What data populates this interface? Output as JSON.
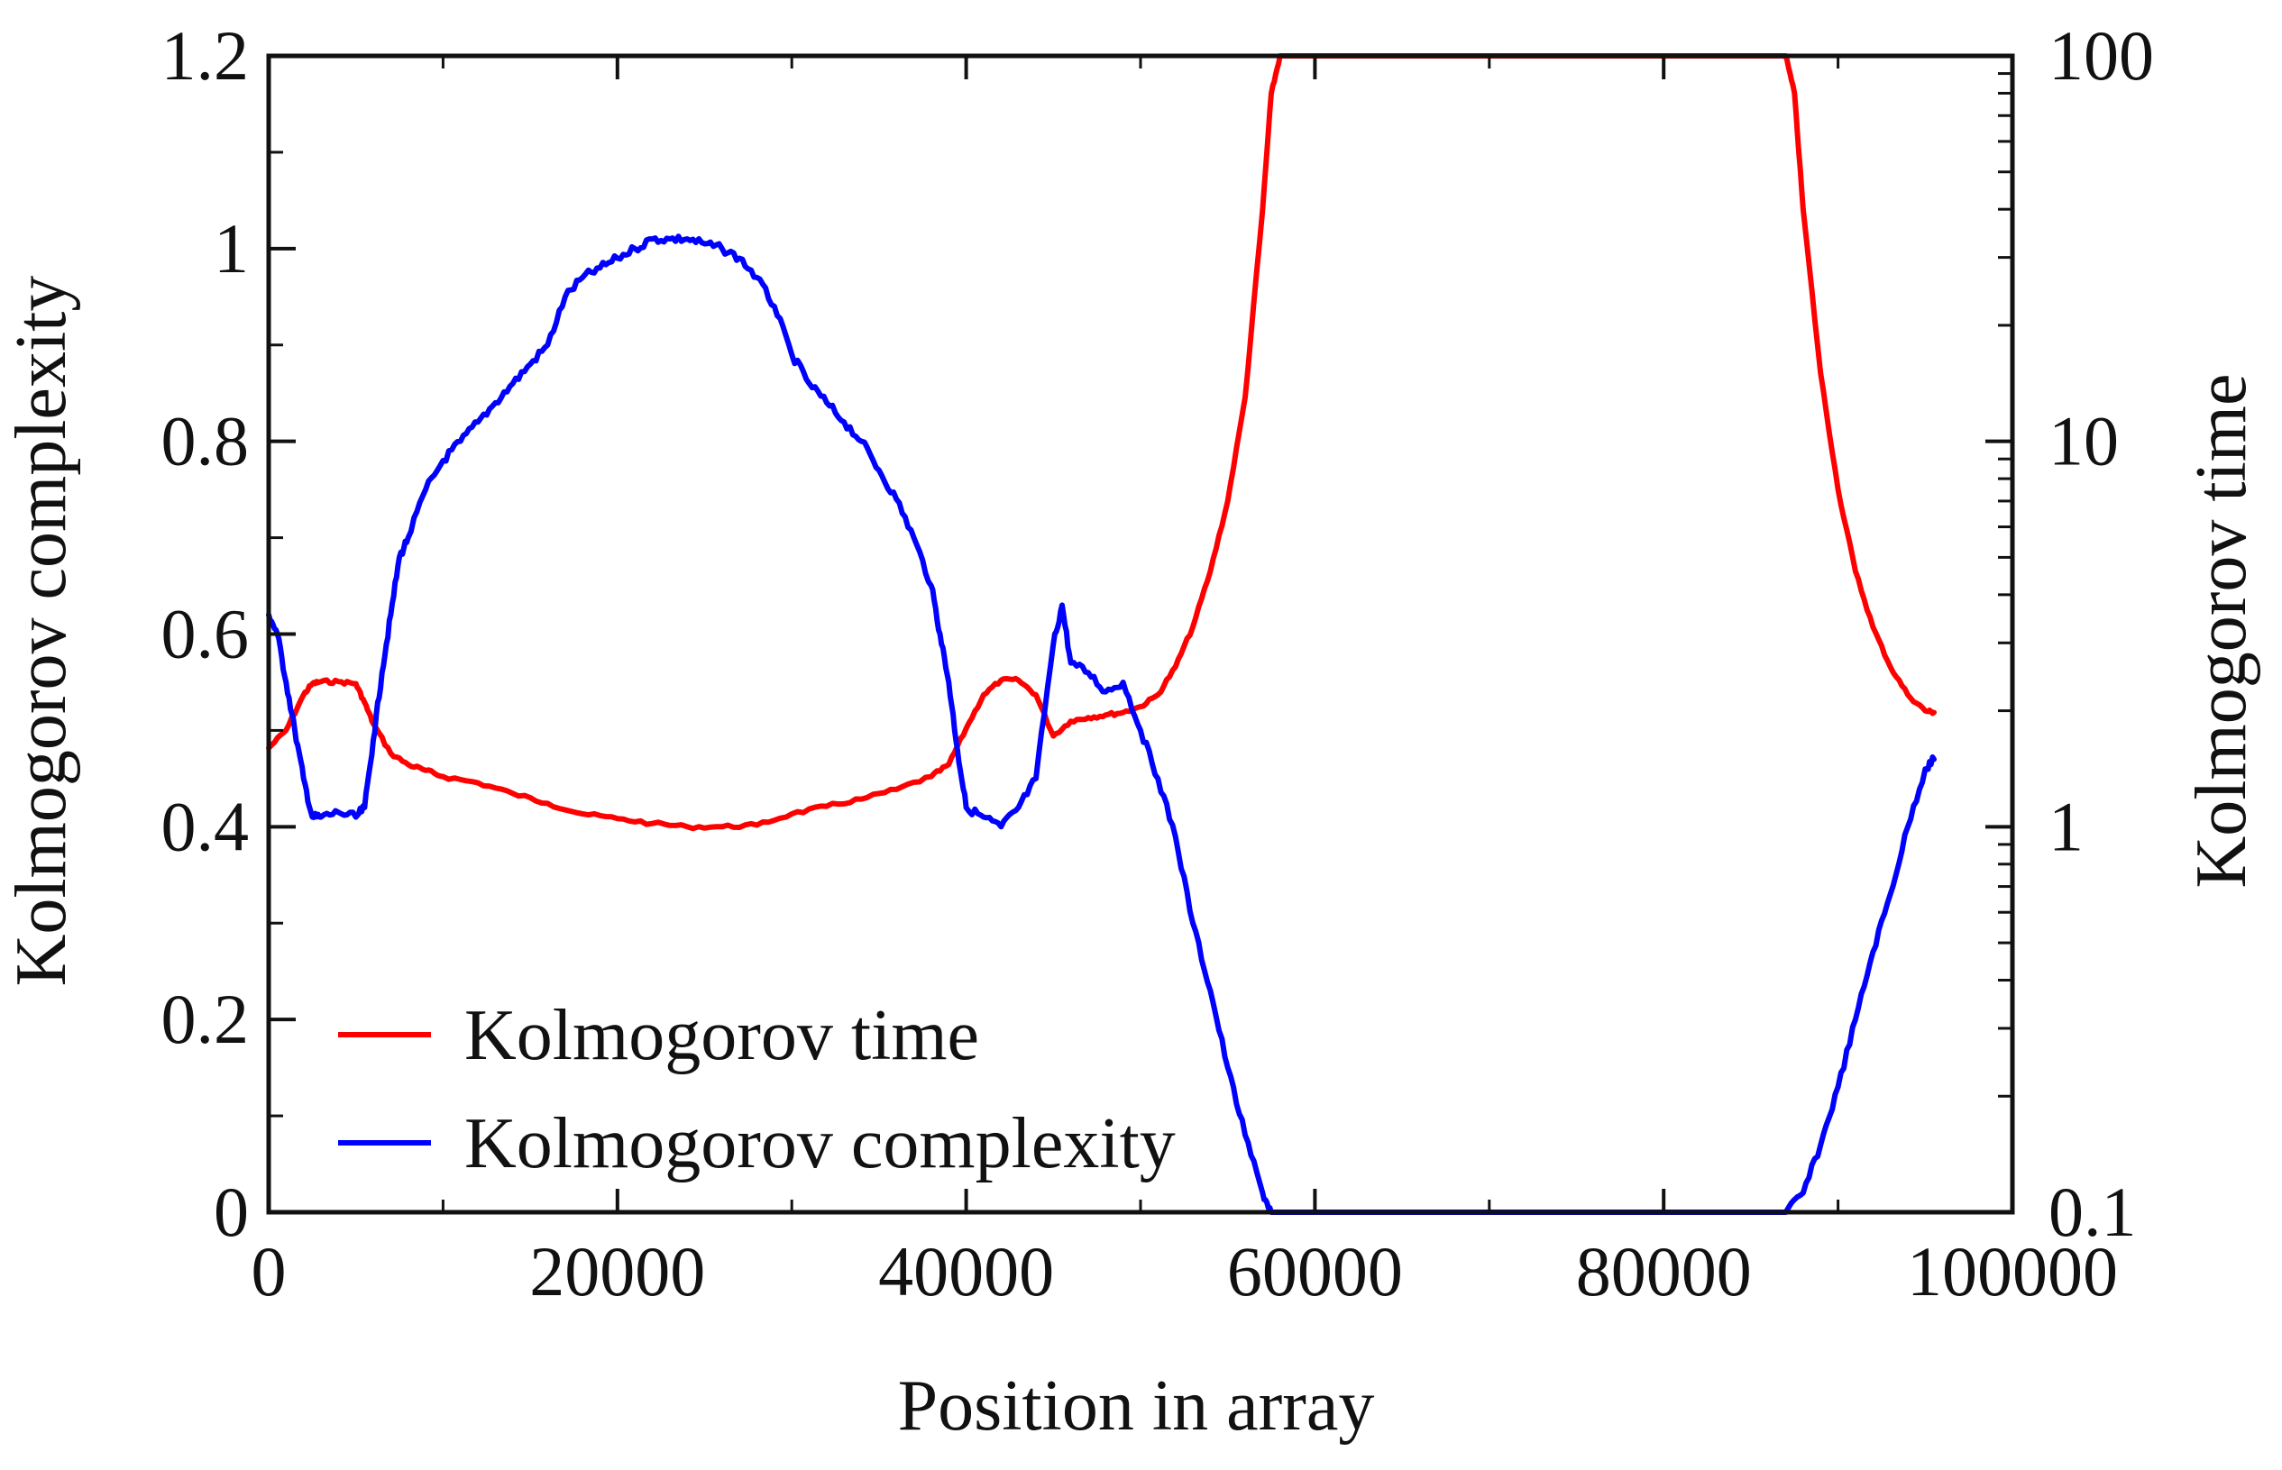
{
  "chart_data": {
    "type": "line",
    "title": "",
    "xlabel": "Position in array",
    "ylabel_left": "Kolmogorov complexity",
    "ylabel_right": "Kolmogorov time",
    "xlim": [
      0,
      100000
    ],
    "ylim_left": [
      0,
      1.2
    ],
    "ylim_right": [
      0.1,
      100
    ],
    "y_right_scale": "log",
    "grid": false,
    "legend_position": "bottom-left",
    "x_ticks": [
      "0",
      "20000",
      "40000",
      "60000",
      "80000",
      "100000"
    ],
    "y_left_ticks": [
      "0",
      "0.2",
      "0.4",
      "0.6",
      "0.8",
      "1",
      "1.2"
    ],
    "y_right_ticks": [
      "0.1",
      "1",
      "10",
      "100"
    ],
    "series": [
      {
        "name": "Kolmogorov time",
        "axis": "right",
        "color": "#ff0000",
        "x": [
          0,
          1000,
          2000,
          2500,
          3000,
          4000,
          5000,
          5500,
          6000,
          7000,
          8000,
          9000,
          10000,
          12000,
          14000,
          16000,
          18000,
          20000,
          22000,
          24000,
          26000,
          28000,
          30000,
          32000,
          34000,
          36000,
          38000,
          39000,
          40000,
          41000,
          42000,
          43000,
          44000,
          45000,
          46000,
          47000,
          48000,
          49000,
          50000,
          51000,
          52000,
          53000,
          54000,
          55000,
          56000,
          57000,
          57500,
          58000,
          60000,
          70000,
          80000,
          87000,
          87500,
          88000,
          89000,
          90000,
          91000,
          92000,
          93000,
          94000,
          95000,
          95500
        ],
        "values": [
          1.6,
          1.78,
          2.2,
          2.35,
          2.38,
          2.38,
          2.35,
          2.1,
          1.85,
          1.55,
          1.45,
          1.4,
          1.35,
          1.3,
          1.22,
          1.15,
          1.08,
          1.05,
          1.02,
          1.0,
          1.0,
          1.01,
          1.08,
          1.13,
          1.18,
          1.25,
          1.35,
          1.45,
          1.8,
          2.2,
          2.4,
          2.4,
          2.2,
          1.72,
          1.88,
          1.92,
          1.95,
          1.98,
          2.05,
          2.2,
          2.6,
          3.3,
          4.6,
          7.0,
          13.0,
          40.0,
          80.0,
          100.0,
          100.0,
          100.0,
          100.0,
          100.0,
          80.0,
          40.0,
          15.0,
          7.5,
          4.6,
          3.3,
          2.6,
          2.2,
          2.0,
          1.98
        ]
      },
      {
        "name": "Kolmogorov complexity",
        "axis": "left",
        "color": "#0000ff",
        "x": [
          0,
          500,
          1000,
          1500,
          2000,
          2500,
          3000,
          4000,
          5000,
          5500,
          6000,
          6500,
          7000,
          7500,
          8000,
          9000,
          10000,
          11000,
          12000,
          13000,
          14000,
          15000,
          16000,
          17000,
          18000,
          19000,
          20000,
          21000,
          22000,
          23000,
          24000,
          25000,
          26000,
          27000,
          28000,
          29000,
          30000,
          31000,
          32000,
          33000,
          34000,
          35000,
          36000,
          37000,
          38000,
          38500,
          39000,
          39500,
          40000,
          41000,
          42000,
          43000,
          44000,
          45000,
          45500,
          46000,
          47000,
          48000,
          49000,
          50000,
          51000,
          52000,
          53000,
          54000,
          55000,
          56000,
          57000,
          57500,
          58000,
          70000,
          87000,
          88000,
          89000,
          90000,
          91000,
          92000,
          93000,
          94000,
          95000,
          95500
        ],
        "values": [
          0.62,
          0.6,
          0.55,
          0.5,
          0.45,
          0.41,
          0.41,
          0.415,
          0.41,
          0.42,
          0.49,
          0.56,
          0.62,
          0.68,
          0.7,
          0.75,
          0.78,
          0.8,
          0.82,
          0.84,
          0.86,
          0.88,
          0.9,
          0.95,
          0.97,
          0.98,
          0.99,
          1.0,
          1.01,
          1.01,
          1.01,
          1.005,
          1.0,
          0.99,
          0.97,
          0.94,
          0.89,
          0.86,
          0.84,
          0.82,
          0.8,
          0.77,
          0.74,
          0.7,
          0.65,
          0.6,
          0.55,
          0.48,
          0.42,
          0.41,
          0.4,
          0.42,
          0.45,
          0.59,
          0.63,
          0.57,
          0.56,
          0.54,
          0.55,
          0.5,
          0.45,
          0.39,
          0.3,
          0.23,
          0.15,
          0.08,
          0.02,
          0.0,
          0.0,
          0.0,
          0.0,
          0.02,
          0.07,
          0.13,
          0.2,
          0.27,
          0.33,
          0.4,
          0.46,
          0.47
        ]
      }
    ]
  }
}
